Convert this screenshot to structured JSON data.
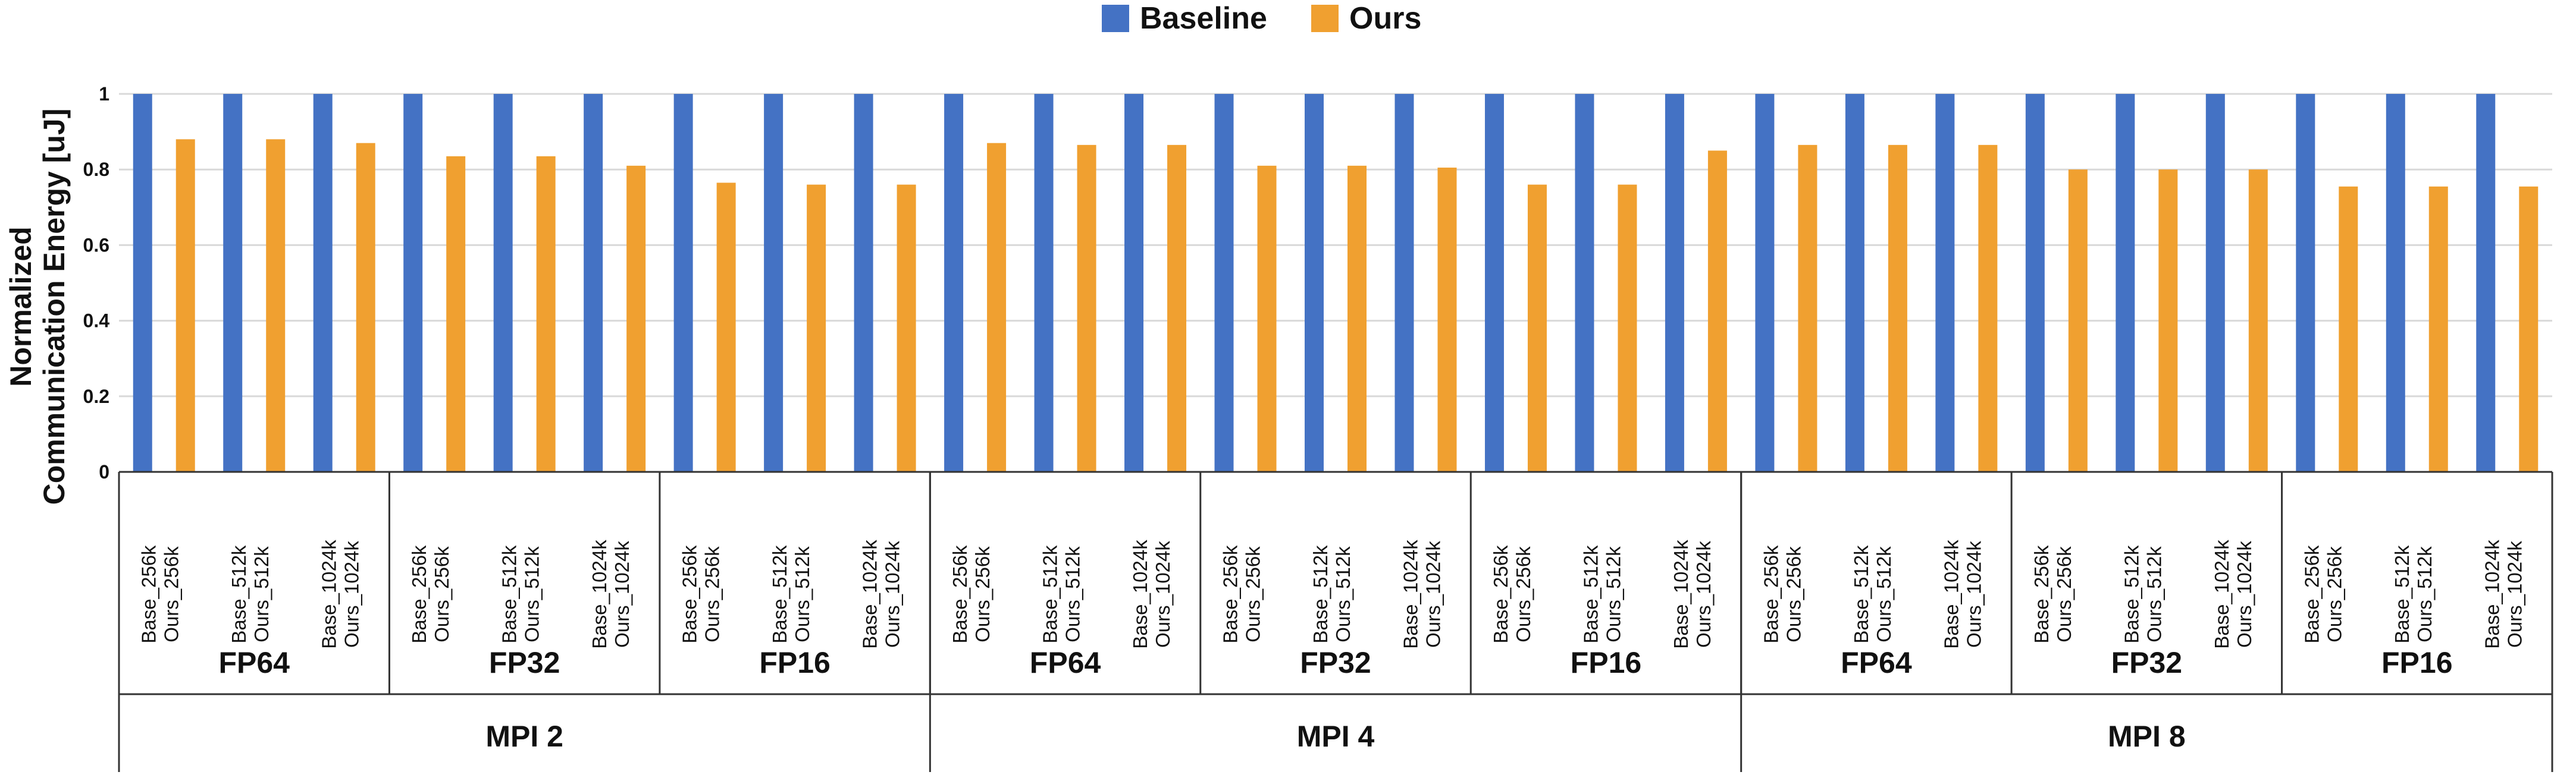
{
  "chart_data": {
    "type": "bar",
    "ylabel_lines": [
      "Normalized",
      "Communication Energy [uJ]"
    ],
    "ylim": [
      0,
      1
    ],
    "yticks": [
      0,
      0.2,
      0.4,
      0.6,
      0.8,
      1
    ],
    "ytick_labels": [
      "0",
      "0.2",
      "0.4",
      "0.6",
      "0.8",
      "1"
    ],
    "grid": true,
    "legend_position": "top-center",
    "series": [
      {
        "name": "Baseline",
        "color": "#4472C4",
        "values": [
          1,
          1,
          1,
          1,
          1,
          1,
          1,
          1,
          1,
          1,
          1,
          1,
          1,
          1,
          1,
          1,
          1,
          1,
          1,
          1,
          1,
          1,
          1,
          1,
          1,
          1,
          1
        ]
      },
      {
        "name": "Ours",
        "color": "#F0A030",
        "values": [
          0.88,
          0.88,
          0.87,
          0.835,
          0.835,
          0.81,
          0.765,
          0.76,
          0.76,
          0.87,
          0.865,
          0.865,
          0.81,
          0.81,
          0.805,
          0.76,
          0.76,
          0.85,
          0.865,
          0.865,
          0.865,
          0.8,
          0.8,
          0.8,
          0.755,
          0.755,
          0.755
        ]
      }
    ],
    "categories": [
      {
        "base": "Base_256k",
        "ours": "Ours_256k"
      },
      {
        "base": "Base_512k",
        "ours": "Ours_512k"
      },
      {
        "base": "Base_1024k",
        "ours": "Ours_1024k"
      },
      {
        "base": "Base_256k",
        "ours": "Ours_256k"
      },
      {
        "base": "Base_512k",
        "ours": "Ours_512k"
      },
      {
        "base": "Base_1024k",
        "ours": "Ours_1024k"
      },
      {
        "base": "Base_256k",
        "ours": "Ours_256k"
      },
      {
        "base": "Base_512k",
        "ours": "Ours_512k"
      },
      {
        "base": "Base_1024k",
        "ours": "Ours_1024k"
      },
      {
        "base": "Base_256k",
        "ours": "Ours_256k"
      },
      {
        "base": "Base_512k",
        "ours": "Ours_512k"
      },
      {
        "base": "Base_1024k",
        "ours": "Ours_1024k"
      },
      {
        "base": "Base_256k",
        "ours": "Ours_256k"
      },
      {
        "base": "Base_512k",
        "ours": "Ours_512k"
      },
      {
        "base": "Base_1024k",
        "ours": "Ours_1024k"
      },
      {
        "base": "Base_256k",
        "ours": "Ours_256k"
      },
      {
        "base": "Base_512k",
        "ours": "Ours_512k"
      },
      {
        "base": "Base_1024k",
        "ours": "Ours_1024k"
      },
      {
        "base": "Base_256k",
        "ours": "Ours_256k"
      },
      {
        "base": "Base_512k",
        "ours": "Ours_512k"
      },
      {
        "base": "Base_1024k",
        "ours": "Ours_1024k"
      },
      {
        "base": "Base_256k",
        "ours": "Ours_256k"
      },
      {
        "base": "Base_512k",
        "ours": "Ours_512k"
      },
      {
        "base": "Base_1024k",
        "ours": "Ours_1024k"
      },
      {
        "base": "Base_256k",
        "ours": "Ours_256k"
      },
      {
        "base": "Base_512k",
        "ours": "Ours_512k"
      },
      {
        "base": "Base_1024k",
        "ours": "Ours_1024k"
      }
    ],
    "precision_groups": [
      "FP64",
      "FP32",
      "FP16",
      "FP64",
      "FP32",
      "FP16",
      "FP64",
      "FP32",
      "FP16"
    ],
    "mpi_groups": [
      "MPI 2",
      "MPI 4",
      "MPI 8"
    ]
  }
}
